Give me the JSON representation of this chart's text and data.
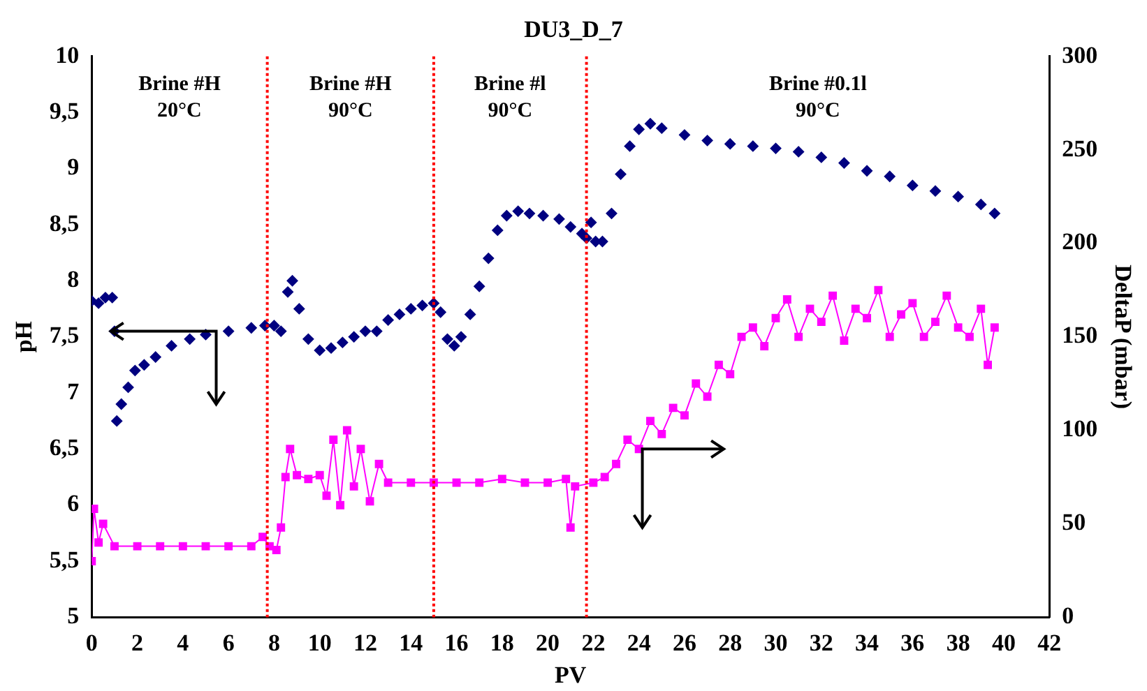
{
  "chart_data": {
    "type": "scatter",
    "title": "DU3_D_7",
    "xlabel": "PV",
    "ylabel": "pH",
    "y2label": "DeltaP (mbar)",
    "series": [
      {
        "type": "scatter",
        "marker": "diamond",
        "color": "#000080",
        "x": [
          0,
          0.3,
          0.6,
          0.9,
          1.0,
          1.1,
          1.3,
          1.6,
          1.9,
          2.3,
          2.8,
          3.5,
          4.3,
          5,
          6,
          7,
          7.6,
          8.0,
          8.3,
          8.6,
          8.8,
          9.1,
          9.5,
          10,
          10.5,
          11,
          11.5,
          12,
          12.5,
          13,
          13.5,
          14,
          14.5,
          15,
          15.3,
          15.6,
          15.9,
          16.2,
          16.6,
          17,
          17.4,
          17.8,
          18.2,
          18.7,
          19.2,
          19.8,
          20.5,
          21,
          21.5,
          21.7,
          21.9,
          22.1,
          22.4,
          22.8,
          23.2,
          23.6,
          24,
          24.5,
          25,
          26,
          27,
          28,
          29,
          30,
          31,
          32,
          33,
          34,
          35,
          36,
          37,
          38,
          39,
          39.6
        ],
        "values": [
          7.82,
          7.8,
          7.85,
          7.85,
          7.55,
          6.75,
          6.9,
          7.05,
          7.2,
          7.25,
          7.32,
          7.42,
          7.48,
          7.52,
          7.55,
          7.58,
          7.6,
          7.6,
          7.55,
          7.9,
          8.0,
          7.75,
          7.48,
          7.38,
          7.4,
          7.45,
          7.5,
          7.55,
          7.55,
          7.65,
          7.7,
          7.75,
          7.78,
          7.8,
          7.72,
          7.48,
          7.42,
          7.5,
          7.7,
          7.95,
          8.2,
          8.45,
          8.58,
          8.62,
          8.6,
          8.58,
          8.55,
          8.48,
          8.42,
          8.38,
          8.52,
          8.35,
          8.35,
          8.6,
          8.95,
          9.2,
          9.35,
          9.4,
          9.36,
          9.3,
          9.25,
          9.22,
          9.2,
          9.18,
          9.15,
          9.1,
          9.05,
          8.98,
          8.93,
          8.85,
          8.8,
          8.75,
          8.68,
          8.6
        ]
      },
      {
        "type": "line",
        "marker": "square",
        "color": "#ff00ff",
        "axis": "y2",
        "x": [
          0,
          0.1,
          0.3,
          0.5,
          1,
          2,
          3,
          4,
          5,
          6,
          7,
          7.5,
          7.8,
          8.1,
          8.3,
          8.5,
          8.7,
          9,
          9.5,
          10,
          10.3,
          10.6,
          10.9,
          11.2,
          11.5,
          11.8,
          12.2,
          12.6,
          13,
          14,
          15,
          16,
          17,
          18,
          19,
          20,
          20.8,
          21,
          21.2,
          22,
          22.5,
          23,
          23.5,
          24,
          24.5,
          25,
          25.5,
          26,
          26.5,
          27,
          27.5,
          28,
          28.5,
          29,
          29.5,
          30,
          30.5,
          31,
          31.5,
          32,
          32.5,
          33,
          33.5,
          34,
          34.5,
          35,
          35.5,
          36,
          36.5,
          37,
          37.5,
          38,
          38.5,
          39,
          39.3,
          39.6
        ],
        "values": [
          30,
          58,
          40,
          50,
          38,
          38,
          38,
          38,
          38,
          38,
          38,
          43,
          38,
          36,
          48,
          75,
          90,
          76,
          74,
          76,
          65,
          95,
          60,
          100,
          70,
          90,
          62,
          82,
          72,
          72,
          72,
          72,
          72,
          74,
          72,
          72,
          74,
          48,
          70,
          72,
          75,
          82,
          95,
          90,
          105,
          98,
          112,
          108,
          125,
          118,
          135,
          130,
          150,
          155,
          145,
          160,
          170,
          150,
          165,
          158,
          172,
          148,
          165,
          160,
          175,
          150,
          162,
          168,
          150,
          158,
          172,
          155,
          150,
          165,
          135,
          155
        ]
      }
    ],
    "xlim": [
      0,
      42
    ],
    "xticks": [
      0,
      2,
      4,
      6,
      8,
      10,
      12,
      14,
      16,
      18,
      20,
      22,
      24,
      26,
      28,
      30,
      32,
      34,
      36,
      38,
      40,
      42
    ],
    "ylim": [
      5,
      10
    ],
    "yticks": [
      5,
      {
        "value": 5.5,
        "label": "5,5"
      },
      6,
      {
        "value": 6.5,
        "label": "6,5"
      },
      7,
      {
        "value": 7.5,
        "label": "7,5"
      },
      8,
      {
        "value": 8.5,
        "label": "8,5"
      },
      9,
      {
        "value": 9.5,
        "label": "9,5"
      },
      10
    ],
    "y2lim": [
      0,
      300
    ],
    "y2ticks": [
      0,
      50,
      100,
      150,
      200,
      250,
      300
    ],
    "ref_lines": [
      {
        "axis": "x",
        "value": 7.7,
        "color": "#ff0000",
        "line_style": "dotted"
      },
      {
        "axis": "x",
        "value": 15,
        "color": "#ff0000",
        "line_style": "dotted"
      },
      {
        "axis": "x",
        "value": 21.7,
        "color": "#ff0000",
        "line_style": "dotted"
      }
    ],
    "annotations": [
      "Brine #H\n20°C",
      "Brine #H\n90°C",
      "Brine #l\n90°C",
      "Brine #0.1l\n90°C"
    ],
    "grid": false,
    "legend": false
  }
}
